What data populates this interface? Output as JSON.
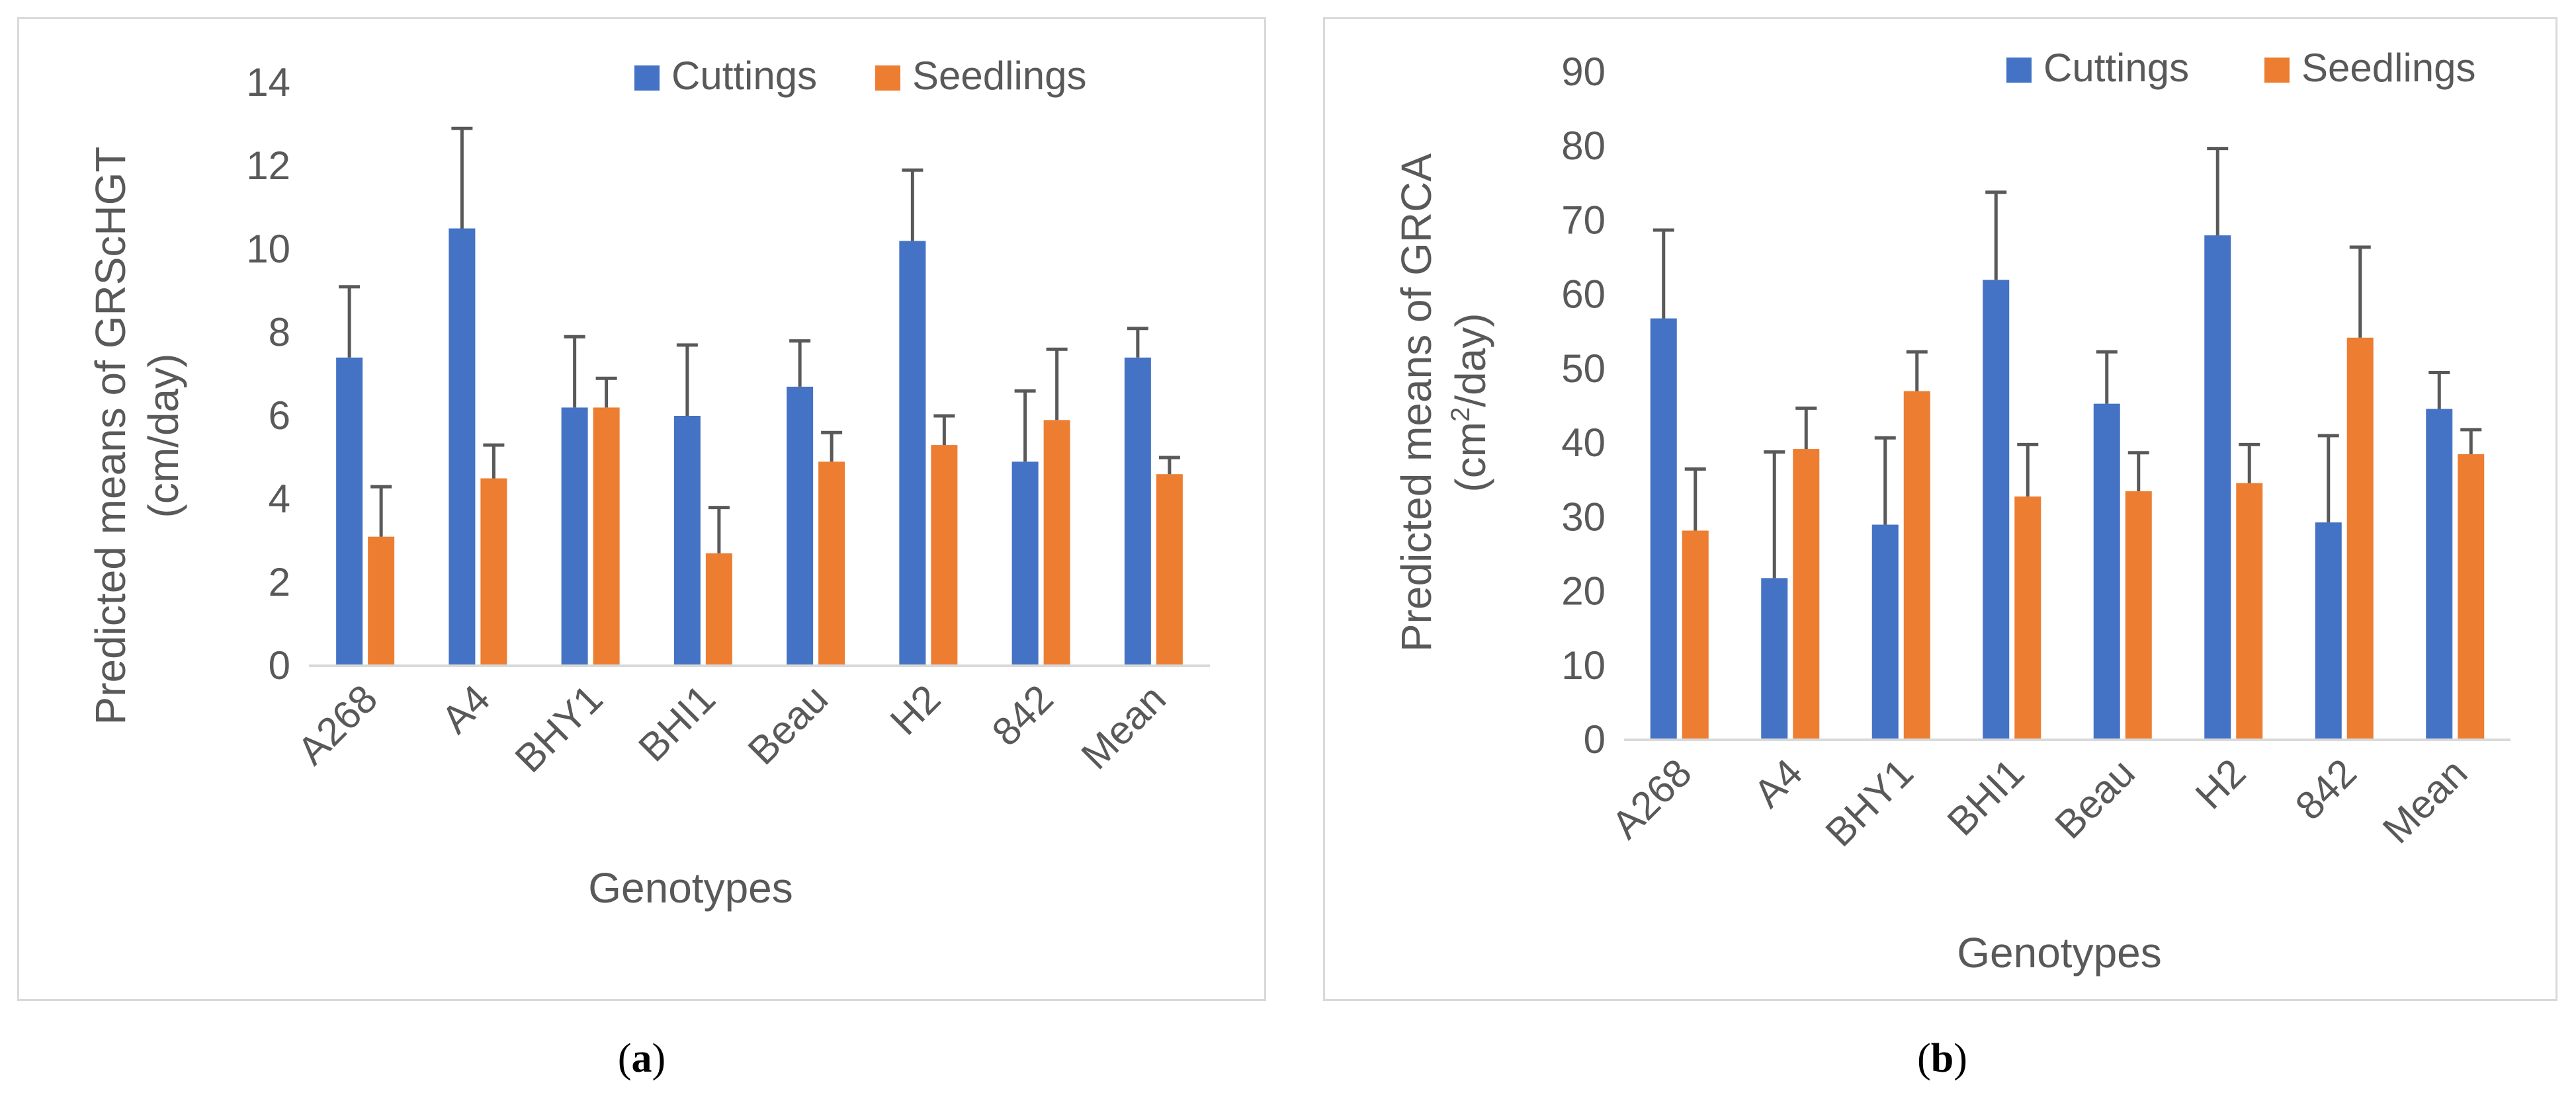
{
  "colors": {
    "cuttings": "#4472C4",
    "seedlings": "#ED7D31",
    "axis_text": "#595959",
    "error_bar": "#595959",
    "axis_line": "#d9d9d9"
  },
  "captions": [
    "a",
    "b"
  ],
  "chart_data": [
    {
      "type": "bar",
      "categories": [
        "A268",
        "A4",
        "BHY1",
        "BHI1",
        "Beau",
        "H2",
        "842",
        "Mean"
      ],
      "series": [
        {
          "name": "Cuttings",
          "values": [
            7.4,
            10.5,
            6.2,
            6.0,
            6.7,
            10.2,
            4.9,
            7.4
          ],
          "error": [
            1.7,
            2.4,
            1.7,
            1.7,
            1.1,
            1.7,
            1.7,
            0.7
          ]
        },
        {
          "name": "Seedlings",
          "values": [
            3.1,
            4.5,
            6.2,
            2.7,
            4.9,
            5.3,
            5.9,
            4.6
          ],
          "error": [
            1.2,
            0.8,
            0.7,
            1.1,
            0.7,
            0.7,
            1.7,
            0.4
          ]
        }
      ],
      "ylabel_line1": "Predicted means of GRScHGT",
      "ylabel_line2": "(cm/day)",
      "xlabel": "Genotypes",
      "ylim": [
        0,
        14
      ],
      "yticks": [
        0,
        2,
        4,
        6,
        8,
        10,
        12,
        14
      ],
      "legend_position": "top-right"
    },
    {
      "type": "bar",
      "categories": [
        "A268",
        "A4",
        "BHY1",
        "BHI1",
        "Beau",
        "H2",
        "842",
        "Mean"
      ],
      "series": [
        {
          "name": "Cuttings",
          "values": [
            56.8,
            21.8,
            29.0,
            62.0,
            45.3,
            68.0,
            29.3,
            44.6
          ],
          "error": [
            11.9,
            17.0,
            11.7,
            11.8,
            7.0,
            11.7,
            11.7,
            4.9
          ]
        },
        {
          "name": "Seedlings",
          "values": [
            28.2,
            39.2,
            47.0,
            32.8,
            33.5,
            34.6,
            54.2,
            38.5
          ],
          "error": [
            8.3,
            5.5,
            5.3,
            7.0,
            5.2,
            5.2,
            12.2,
            3.3
          ]
        }
      ],
      "ylabel_line1": "Predicted means of GRCA",
      "ylabel_pre": "(cm",
      "ylabel_sup": "2",
      "ylabel_post": "/day)",
      "xlabel": "Genotypes",
      "ylim": [
        0,
        90
      ],
      "yticks": [
        0,
        10,
        20,
        30,
        40,
        50,
        60,
        70,
        80,
        90
      ],
      "legend_position": "top-right"
    }
  ]
}
